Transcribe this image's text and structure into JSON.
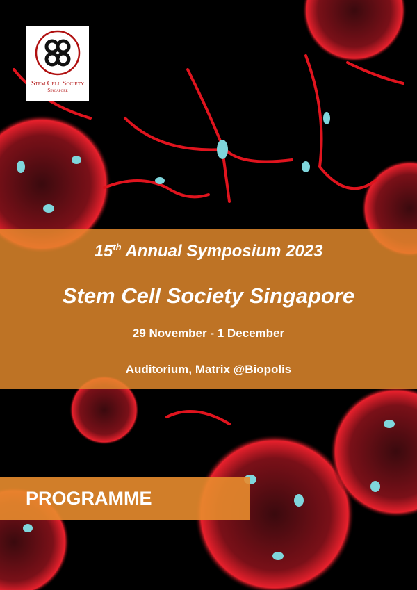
{
  "logo": {
    "name": "Stem Cell Society",
    "country": "Singapore"
  },
  "header": {
    "edition": {
      "number": "15",
      "suffix": "th",
      "rest": "Annual Symposium 2023"
    },
    "title": "Stem Cell Society Singapore",
    "dates": "29 November - 1 December",
    "venue": "Auditorium, Matrix @Biopolis"
  },
  "footer": {
    "label": "PROGRAMME"
  }
}
